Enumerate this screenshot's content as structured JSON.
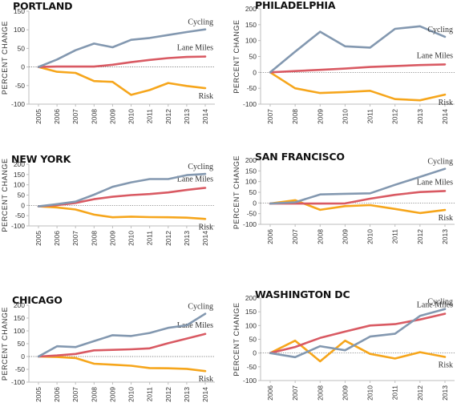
{
  "colors": {
    "cycling": "#8398b0",
    "lane_miles": "#d95a63",
    "risk": "#f6a61c",
    "axis": "#bdbdbd",
    "zero_line": "#555555"
  },
  "chart_data": [
    {
      "type": "line",
      "title": "PORTLAND",
      "ylabel": "PERCENT CHANGE",
      "ylim": [
        -100,
        150
      ],
      "yticks": [
        -100,
        -50,
        0,
        50,
        100,
        150
      ],
      "categories": [
        "2005",
        "2006",
        "2007",
        "2008",
        "2009",
        "2010",
        "2011",
        "2012",
        "2013",
        "2014"
      ],
      "series": [
        {
          "name": "Cycling",
          "key": "cycling",
          "values": [
            0,
            20,
            45,
            63,
            53,
            73,
            78,
            86,
            94,
            101
          ]
        },
        {
          "name": "Lane Miles",
          "key": "lane_miles",
          "values": [
            0,
            1,
            1,
            1,
            6,
            13,
            19,
            24,
            27,
            28
          ]
        },
        {
          "name": "Risk",
          "key": "risk",
          "values": [
            0,
            -13,
            -16,
            -38,
            -40,
            -75,
            -62,
            -43,
            -51,
            -57
          ]
        }
      ]
    },
    {
      "type": "line",
      "title": "PHILADELPHIA",
      "ylabel": "PERCENT CHANGE",
      "ylim": [
        -100,
        200
      ],
      "yticks": [
        -100,
        -50,
        0,
        50,
        100,
        150,
        200
      ],
      "categories": [
        "2007",
        "2008",
        "2009",
        "2010",
        "2011",
        "2012",
        "2013",
        "2014"
      ],
      "series": [
        {
          "name": "Cycling",
          "key": "cycling",
          "values": [
            0,
            65,
            128,
            82,
            78,
            137,
            145,
            112
          ]
        },
        {
          "name": "Lane Miles",
          "key": "lane_miles",
          "values": [
            0,
            4,
            8,
            12,
            17,
            20,
            23,
            25
          ]
        },
        {
          "name": "Risk",
          "key": "risk",
          "values": [
            0,
            -50,
            -65,
            -62,
            -58,
            -84,
            -88,
            -70
          ]
        }
      ]
    },
    {
      "type": "line",
      "title": "NEW YORK",
      "ylabel": "PERCENT CHANGE",
      "ylim": [
        -100,
        200
      ],
      "yticks": [
        -100,
        -50,
        0,
        50,
        100,
        150,
        200
      ],
      "categories": [
        "2005",
        "2006",
        "2007",
        "2008",
        "2009",
        "2010",
        "2011",
        "2012",
        "2013",
        "2014"
      ],
      "series": [
        {
          "name": "Cycling",
          "key": "cycling",
          "values": [
            -5,
            6,
            18,
            52,
            90,
            112,
            128,
            128,
            147,
            153
          ]
        },
        {
          "name": "Lane Miles",
          "key": "lane_miles",
          "values": [
            -5,
            1,
            12,
            30,
            42,
            50,
            55,
            63,
            75,
            85
          ]
        },
        {
          "name": "Risk",
          "key": "risk",
          "values": [
            -5,
            -10,
            -20,
            -45,
            -58,
            -55,
            -57,
            -58,
            -60,
            -66
          ]
        }
      ]
    },
    {
      "type": "line",
      "title": "SAN FRANCISCO",
      "ylabel": "PERCENT CHANGE",
      "ylim": [
        -100,
        200
      ],
      "yticks": [
        -100,
        -50,
        0,
        50,
        100,
        150,
        200
      ],
      "categories": [
        "2006",
        "2007",
        "2008",
        "2009",
        "2010",
        "2011",
        "2012",
        "2013"
      ],
      "series": [
        {
          "name": "Cycling",
          "key": "cycling",
          "values": [
            -3,
            3,
            40,
            43,
            45,
            85,
            122,
            160
          ]
        },
        {
          "name": "Lane Miles",
          "key": "lane_miles",
          "values": [
            -3,
            -3,
            -3,
            -2,
            20,
            38,
            51,
            56
          ]
        },
        {
          "name": "Risk",
          "key": "risk",
          "values": [
            -3,
            13,
            -32,
            -15,
            -10,
            -28,
            -47,
            -33
          ]
        }
      ]
    },
    {
      "type": "line",
      "title": "CHICAGO",
      "ylabel": "PERCENT CHANGE",
      "ylim": [
        -100,
        200
      ],
      "yticks": [
        -100,
        -50,
        0,
        50,
        100,
        150,
        200
      ],
      "categories": [
        "2005",
        "2006",
        "2007",
        "2008",
        "2009",
        "2010",
        "2011",
        "2012",
        "2013",
        "2014"
      ],
      "series": [
        {
          "name": "Cycling",
          "key": "cycling",
          "values": [
            0,
            40,
            37,
            60,
            83,
            80,
            92,
            112,
            122,
            167
          ]
        },
        {
          "name": "Lane Miles",
          "key": "lane_miles",
          "values": [
            0,
            4,
            10,
            24,
            26,
            28,
            32,
            52,
            70,
            88
          ]
        },
        {
          "name": "Risk",
          "key": "risk",
          "values": [
            0,
            -2,
            -6,
            -28,
            -32,
            -36,
            -45,
            -46,
            -48,
            -57
          ]
        }
      ]
    },
    {
      "type": "line",
      "title": "WASHINGTON DC",
      "ylabel": "PERCENT CHANGE",
      "ylim": [
        -100,
        200
      ],
      "yticks": [
        -100,
        -50,
        0,
        50,
        100,
        150,
        200
      ],
      "categories": [
        "2006",
        "2007",
        "2008",
        "2009",
        "2010",
        "2011",
        "2012",
        "2013"
      ],
      "series": [
        {
          "name": "Cycling",
          "key": "cycling",
          "values": [
            0,
            -15,
            25,
            10,
            60,
            70,
            135,
            160
          ]
        },
        {
          "name": "Lane Miles",
          "key": "lane_miles",
          "values": [
            0,
            22,
            55,
            78,
            100,
            105,
            122,
            143
          ]
        },
        {
          "name": "Risk",
          "key": "risk",
          "values": [
            0,
            45,
            -30,
            45,
            -3,
            -20,
            3,
            -14
          ]
        }
      ]
    }
  ]
}
